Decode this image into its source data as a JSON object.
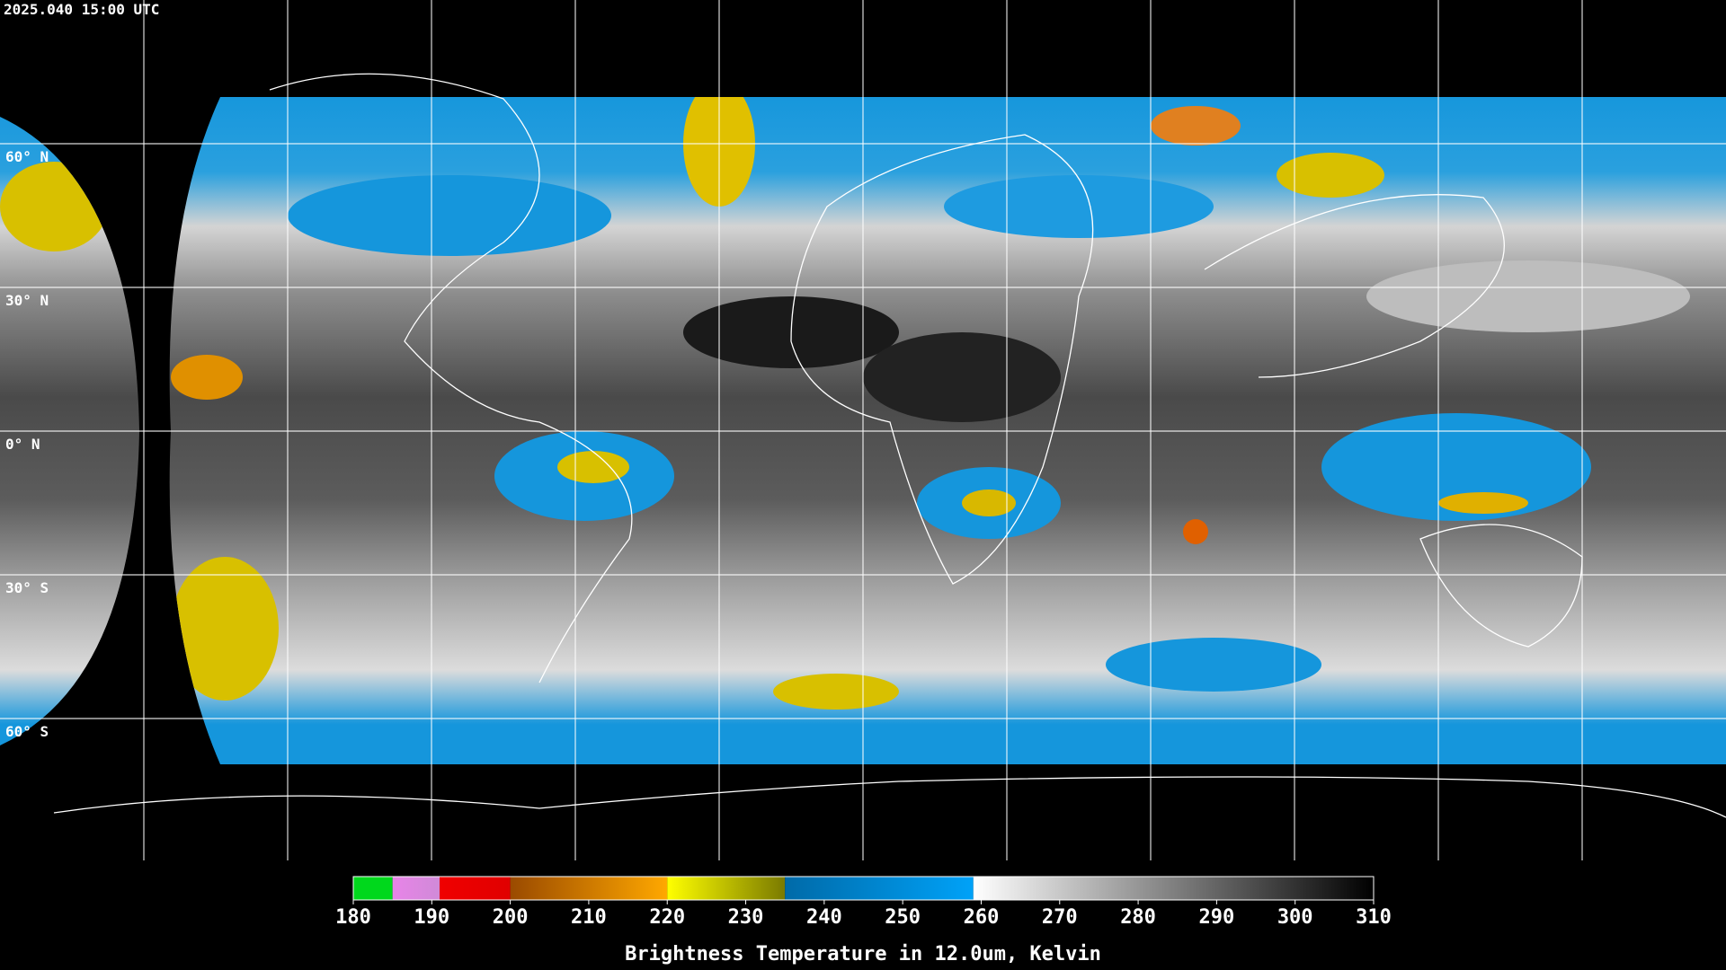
{
  "header": {
    "timestamp": "2025.040 15:00 UTC"
  },
  "latitude_labels": [
    "60° N",
    "30° N",
    "0° N",
    "30° S",
    "60° S"
  ],
  "colorbar": {
    "lim": [
      180,
      310
    ],
    "ticks": [
      180,
      190,
      200,
      210,
      220,
      230,
      240,
      250,
      260,
      270,
      280,
      290,
      300,
      310
    ],
    "segments": [
      {
        "from": 180,
        "to": 185,
        "colors": [
          "#00d81c",
          "#00d81c"
        ]
      },
      {
        "from": 185,
        "to": 191,
        "colors": [
          "#e884e8",
          "#d08ad8"
        ]
      },
      {
        "from": 191,
        "to": 200,
        "colors": [
          "#f00000",
          "#e00000"
        ]
      },
      {
        "from": 200,
        "to": 220,
        "colors": [
          "#9a4a00",
          "#ffa800"
        ]
      },
      {
        "from": 220,
        "to": 235,
        "colors": [
          "#ffff00",
          "#7a7a00"
        ]
      },
      {
        "from": 235,
        "to": 259,
        "colors": [
          "#006aa8",
          "#00a2f8"
        ]
      },
      {
        "from": 259,
        "to": 310,
        "colors": [
          "#ffffff",
          "#000000"
        ]
      }
    ],
    "label": "Brightness Temperature in 12.0um, Kelvin"
  }
}
